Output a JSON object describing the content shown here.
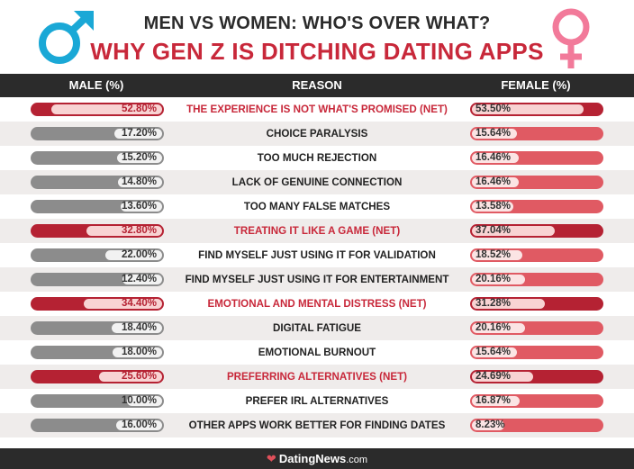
{
  "title": "MEN VS WOMEN: WHO'S OVER WHAT?",
  "subtitle": "WHY GEN Z IS DITCHING DATING APPS",
  "colors": {
    "male_bar": "#8c8c8c",
    "female_bar": "#e05a63",
    "net_bar": "#b52233",
    "accent": "#c8283a",
    "male_symbol": "#1aa8d6",
    "female_symbol": "#f27a9a"
  },
  "icons": {
    "male": "male-symbol-icon",
    "female": "female-symbol-icon",
    "brand": "heart-icon"
  },
  "columns": {
    "male": "MALE (%)",
    "reason": "REASON",
    "female": "FEMALE (%)"
  },
  "footer": {
    "brand": "DatingNews",
    "suffix": ".com"
  },
  "chart_data": {
    "type": "bar",
    "title": "MEN VS WOMEN: WHO'S OVER WHAT?",
    "subtitle": "WHY GEN Z IS DITCHING DATING APPS",
    "ylim": [
      0,
      100
    ],
    "categories": [
      "THE EXPERIENCE IS NOT WHAT'S PROMISED (NET)",
      "CHOICE PARALYSIS",
      "TOO MUCH REJECTION",
      "LACK OF GENUINE CONNECTION",
      "TOO MANY FALSE MATCHES",
      "TREATING IT LIKE A GAME (NET)",
      "FIND MYSELF JUST USING IT FOR VALIDATION",
      "FIND MYSELF JUST USING IT FOR ENTERTAINMENT",
      "EMOTIONAL AND MENTAL DISTRESS (NET)",
      "DIGITAL FATIGUE",
      "EMOTIONAL BURNOUT",
      "PREFERRING ALTERNATIVES (NET)",
      "PREFER IRL ALTERNATIVES",
      "OTHER APPS WORK BETTER FOR FINDING DATES"
    ],
    "net": [
      true,
      false,
      false,
      false,
      false,
      true,
      false,
      false,
      true,
      false,
      false,
      true,
      false,
      false
    ],
    "series": [
      {
        "name": "MALE (%)",
        "values": [
          52.8,
          17.2,
          15.2,
          14.8,
          13.6,
          32.8,
          22.0,
          12.4,
          34.4,
          18.4,
          18.0,
          25.6,
          10.0,
          16.0
        ],
        "labels": [
          "52.80%",
          "17.20%",
          "15.20%",
          "14.80%",
          "13.60%",
          "32.80%",
          "22.00%",
          "12.40%",
          "34.40%",
          "18.40%",
          "18.00%",
          "25.60%",
          "10.00%",
          "16.00%"
        ]
      },
      {
        "name": "FEMALE (%)",
        "values": [
          53.5,
          15.64,
          16.46,
          16.46,
          13.58,
          37.04,
          18.52,
          20.16,
          31.28,
          20.16,
          15.64,
          24.69,
          16.87,
          8.23
        ],
        "labels": [
          "53.50%",
          "15.64%",
          "16.46%",
          "16.46%",
          "13.58%",
          "37.04%",
          "18.52%",
          "20.16%",
          "31.28%",
          "20.16%",
          "15.64%",
          "24.69%",
          "16.87%",
          "8.23%"
        ]
      }
    ]
  }
}
